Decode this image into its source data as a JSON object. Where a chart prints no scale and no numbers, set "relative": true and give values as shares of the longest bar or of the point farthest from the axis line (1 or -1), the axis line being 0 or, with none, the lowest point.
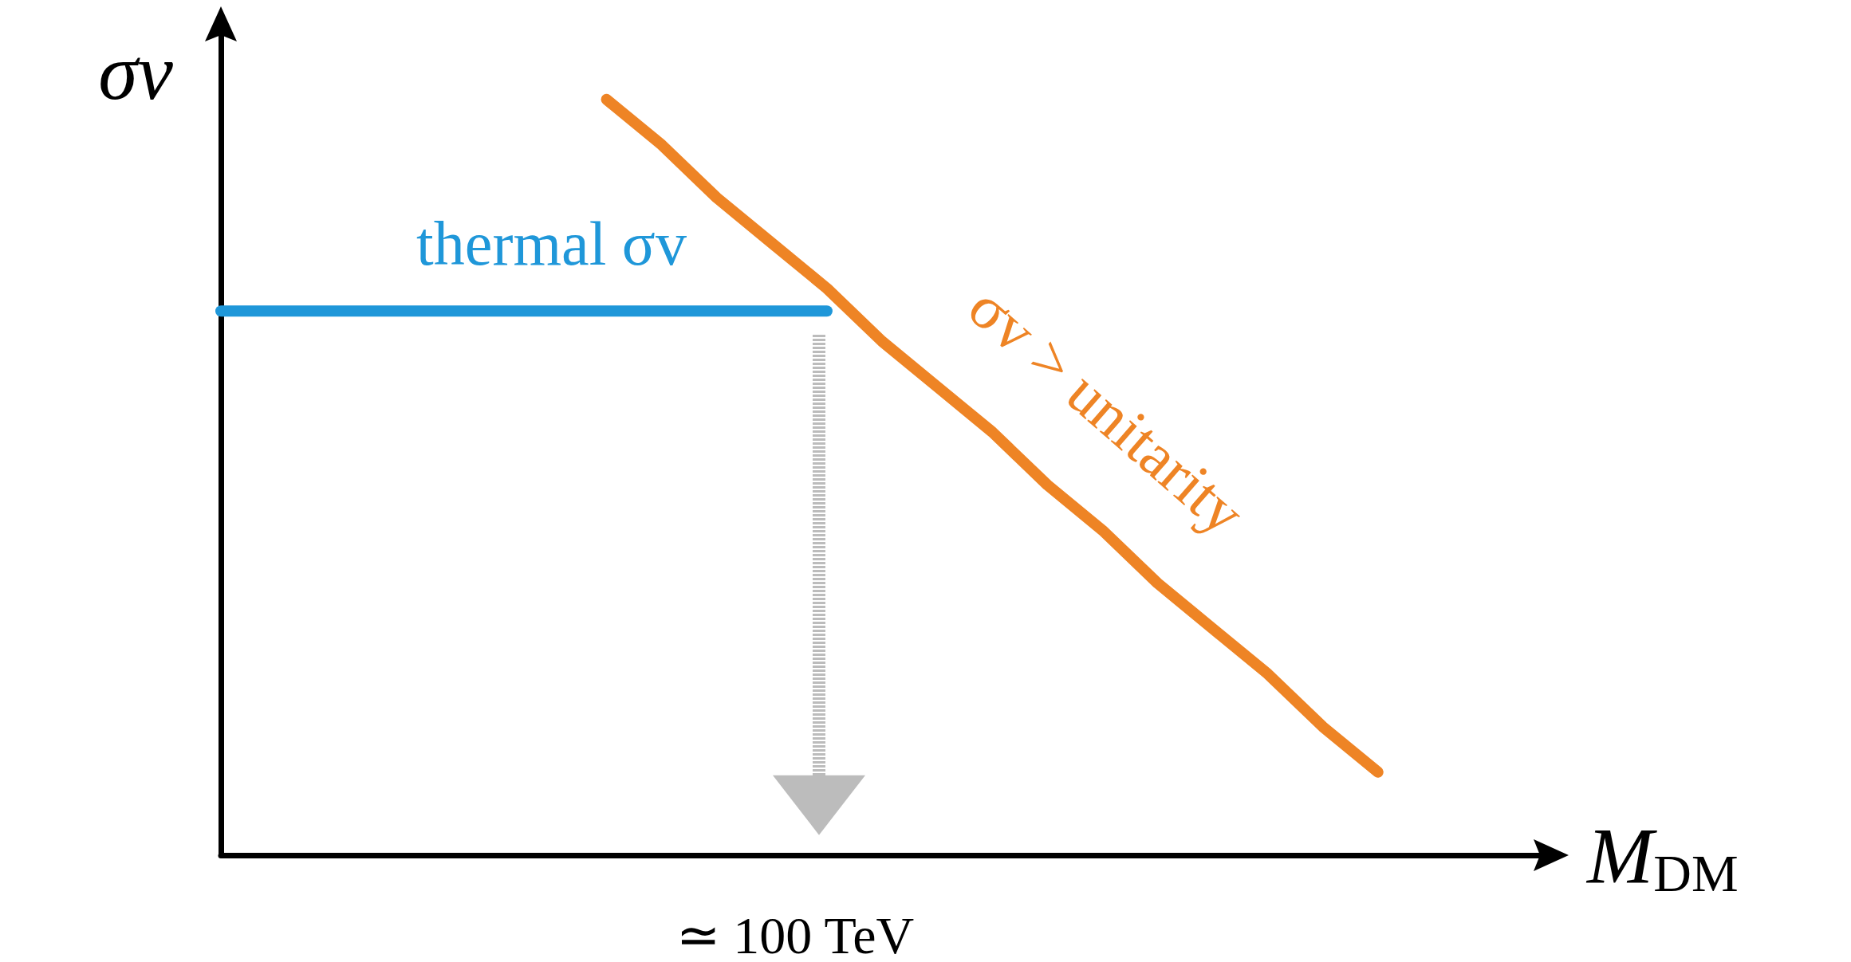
{
  "chart_data": {
    "type": "line",
    "relative": true,
    "ylabel": "σv",
    "xlabel": "M$_{DM}$",
    "legend": false,
    "grid": false,
    "line_style": "solid",
    "categories": [
      null,
      null,
      null,
      null,
      null,
      null,
      null,
      null,
      null,
      null,
      null,
      null,
      null,
      null,
      null,
      null,
      null,
      null,
      null,
      null,
      null,
      null,
      null,
      null,
      null
    ],
    "series": [
      {
        "name": "thermal σv",
        "color": "#1f97d9",
        "values": [
          0.72,
          0.72,
          0.72,
          0.72,
          0.72,
          0.72,
          0.72,
          0.72,
          0.72,
          0.72,
          0.72,
          0.72,
          null,
          null,
          null,
          null,
          null,
          null,
          null,
          null,
          null,
          null,
          null,
          null,
          null
        ]
      },
      {
        "name": "σv > unitarity",
        "color": "#ee8425",
        "values": [
          null,
          null,
          null,
          null,
          null,
          null,
          null,
          1,
          0.94,
          0.87,
          0.81,
          0.75,
          0.68,
          0.62,
          0.56,
          0.49,
          0.43,
          0.36,
          0.3,
          0.24,
          0.17,
          0.11,
          null,
          null,
          null
        ]
      }
    ],
    "annotations": [
      "≃ 100 TeV"
    ]
  }
}
